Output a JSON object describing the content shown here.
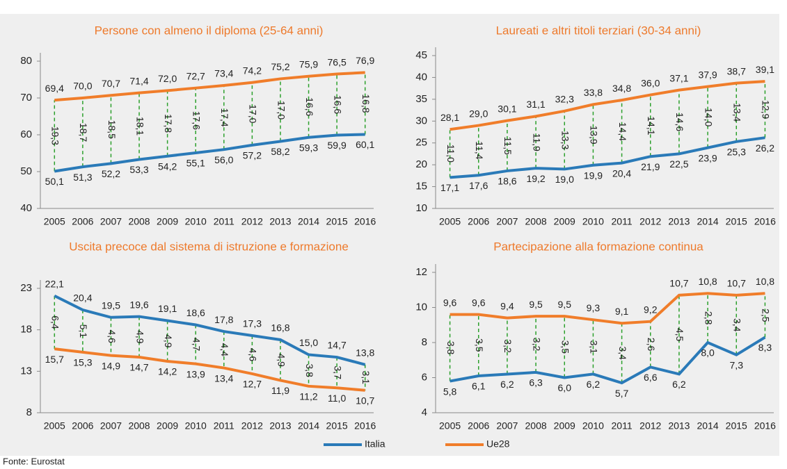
{
  "chart_data": [
    {
      "type": "line",
      "title": "Persone con almeno il diploma (25-64 anni)",
      "categories": [
        "2005",
        "2006",
        "2007",
        "2008",
        "2009",
        "2010",
        "2011",
        "2012",
        "2013",
        "2014",
        "2015",
        "2016"
      ],
      "ylim": [
        40,
        80
      ],
      "yticks": [
        40,
        50,
        60,
        70,
        80
      ],
      "series": [
        {
          "name": "Italia",
          "color": "#2a7ab8",
          "values": [
            50.1,
            51.3,
            52.2,
            53.3,
            54.2,
            55.1,
            56.0,
            57.2,
            58.2,
            59.3,
            59.9,
            60.1
          ],
          "value_labels": [
            "50,1",
            "51,3",
            "52,2",
            "53,3",
            "54,2",
            "55,1",
            "56,0",
            "57,2",
            "58,2",
            "59,3",
            "59,9",
            "60,1"
          ]
        },
        {
          "name": "Ue28",
          "color": "#f07d2a",
          "values": [
            69.4,
            70.0,
            70.7,
            71.4,
            72.0,
            72.7,
            73.4,
            74.2,
            75.2,
            75.9,
            76.5,
            76.9
          ],
          "value_labels": [
            "69,4",
            "70,0",
            "70,7",
            "71,4",
            "72,0",
            "72,7",
            "73,4",
            "74,2",
            "75,2",
            "75,9",
            "76,5",
            "76,9"
          ]
        }
      ],
      "differences": {
        "color": "#2ca02c",
        "values": [
          19.3,
          18.7,
          18.5,
          18.1,
          17.8,
          17.6,
          17.4,
          17.0,
          17.0,
          16.6,
          16.6,
          16.8
        ],
        "value_labels": [
          "19,3",
          "18,7",
          "18,5",
          "18,1",
          "17,8",
          "17,6",
          "17,4",
          "17,0",
          "17,0",
          "16,6",
          "16,6",
          "16,8"
        ]
      }
    },
    {
      "type": "line",
      "title": "Laureati e altri titoli terziari (30-34 anni)",
      "categories": [
        "2005",
        "2006",
        "2007",
        "2008",
        "2009",
        "2010",
        "2011",
        "2012",
        "2013",
        "2014",
        "2015",
        "2016"
      ],
      "ylim": [
        10,
        45
      ],
      "yticks": [
        10,
        15,
        20,
        25,
        30,
        35,
        40,
        45
      ],
      "series": [
        {
          "name": "Italia",
          "color": "#2a7ab8",
          "values": [
            17.1,
            17.6,
            18.6,
            19.2,
            19.0,
            19.9,
            20.4,
            21.9,
            22.5,
            23.9,
            25.3,
            26.2
          ],
          "value_labels": [
            "17,1",
            "17,6",
            "18,6",
            "19,2",
            "19,0",
            "19,9",
            "20,4",
            "21,9",
            "22,5",
            "23,9",
            "25,3",
            "26,2"
          ]
        },
        {
          "name": "Ue28",
          "color": "#f07d2a",
          "values": [
            28.1,
            29.0,
            30.1,
            31.1,
            32.3,
            33.8,
            34.8,
            36.0,
            37.1,
            37.9,
            38.7,
            39.1
          ],
          "value_labels": [
            "28,1",
            "29,0",
            "30,1",
            "31,1",
            "32,3",
            "33,8",
            "34,8",
            "36,0",
            "37,1",
            "37,9",
            "38,7",
            "39,1"
          ]
        }
      ],
      "differences": {
        "color": "#2ca02c",
        "values": [
          11.0,
          11.4,
          11.5,
          11.9,
          13.3,
          13.9,
          14.4,
          14.1,
          14.6,
          14.0,
          13.4,
          12.9
        ],
        "value_labels": [
          "11,0",
          "11,4",
          "11,5",
          "11,9",
          "13,3",
          "13,9",
          "14,4",
          "14,1",
          "14,6",
          "14,0",
          "13,4",
          "12,9"
        ]
      }
    },
    {
      "type": "line",
      "title": "Uscita precoce dal sistema di istruzione e formazione",
      "categories": [
        "2005",
        "2006",
        "2007",
        "2008",
        "2009",
        "2010",
        "2011",
        "2012",
        "2013",
        "2014",
        "2015",
        "2016"
      ],
      "ylim": [
        8,
        23
      ],
      "yticks": [
        8,
        13,
        18,
        23
      ],
      "series": [
        {
          "name": "Italia",
          "color": "#2a7ab8",
          "values": [
            22.1,
            20.4,
            19.5,
            19.6,
            19.1,
            18.6,
            17.8,
            17.3,
            16.8,
            15.0,
            14.7,
            13.8
          ],
          "value_labels": [
            "22,1",
            "20,4",
            "19,5",
            "19,6",
            "19,1",
            "18,6",
            "17,8",
            "17,3",
            "16,8",
            "15,0",
            "14,7",
            "13,8"
          ]
        },
        {
          "name": "Ue28",
          "color": "#f07d2a",
          "values": [
            15.7,
            15.3,
            14.9,
            14.7,
            14.2,
            13.9,
            13.4,
            12.7,
            11.9,
            11.2,
            11.0,
            10.7
          ],
          "value_labels": [
            "15,7",
            "15,3",
            "14,9",
            "14,7",
            "14,2",
            "13,9",
            "13,4",
            "12,7",
            "11,9",
            "11,2",
            "11,0",
            "10,7"
          ]
        }
      ],
      "differences": {
        "color": "#2ca02c",
        "values": [
          6.4,
          5.1,
          4.6,
          4.9,
          4.9,
          4.7,
          4.4,
          4.6,
          4.9,
          3.8,
          3.7,
          3.1
        ],
        "value_labels": [
          "6,4",
          "5,1",
          "4,6",
          "4,9",
          "4,9",
          "4,7",
          "4,4",
          "4,6",
          "4,9",
          "3,8",
          "3,7",
          "3,1"
        ]
      }
    },
    {
      "type": "line",
      "title": "Partecipazione alla formazione continua",
      "categories": [
        "2005",
        "2006",
        "2007",
        "2008",
        "2009",
        "2010",
        "2011",
        "2012",
        "2013",
        "2014",
        "2015",
        "2016"
      ],
      "ylim": [
        4,
        12
      ],
      "yticks": [
        4,
        6,
        8,
        10,
        12
      ],
      "series": [
        {
          "name": "Italia",
          "color": "#2a7ab8",
          "values": [
            5.8,
            6.1,
            6.2,
            6.3,
            6.0,
            6.2,
            5.7,
            6.6,
            6.2,
            8.0,
            7.3,
            8.3
          ],
          "value_labels": [
            "5,8",
            "6,1",
            "6,2",
            "6,3",
            "6,0",
            "6,2",
            "5,7",
            "6,6",
            "6,2",
            "8,0",
            "7,3",
            "8,3"
          ]
        },
        {
          "name": "Ue28",
          "color": "#f07d2a",
          "values": [
            9.6,
            9.6,
            9.4,
            9.5,
            9.5,
            9.3,
            9.1,
            9.2,
            10.7,
            10.8,
            10.7,
            10.8
          ],
          "value_labels": [
            "9,6",
            "9,6",
            "9,4",
            "9,5",
            "9,5",
            "9,3",
            "9,1",
            "9,2",
            "10,7",
            "10,8",
            "10,7",
            "10,8"
          ]
        }
      ],
      "differences": {
        "color": "#2ca02c",
        "values": [
          3.8,
          3.5,
          3.2,
          3.2,
          3.5,
          3.1,
          3.4,
          2.6,
          4.5,
          2.8,
          3.4,
          2.5
        ],
        "value_labels": [
          "3,8",
          "3,5",
          "3,2",
          "3,2",
          "3,5",
          "3,1",
          "3,4",
          "2,6",
          "4,5",
          "2,8",
          "3,4",
          "2,5"
        ]
      }
    }
  ],
  "source": "Fonte: Eurostat"
}
